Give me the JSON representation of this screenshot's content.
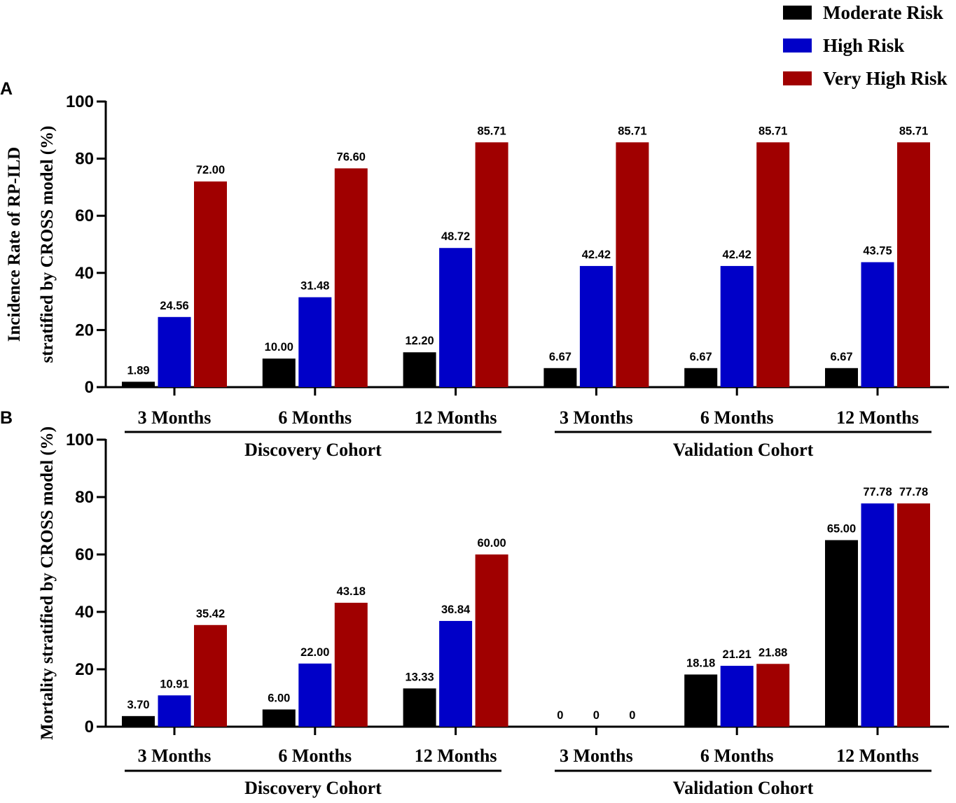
{
  "legend": {
    "items": [
      {
        "label": "Moderate Risk",
        "color": "#000000"
      },
      {
        "label": "High Risk",
        "color": "#0000c8"
      },
      {
        "label": "Very High Risk",
        "color": "#a00000"
      }
    ]
  },
  "chart_data": [
    {
      "type": "bar",
      "panel_letter": "A",
      "ylabel_line1": "Incidence Rate of RP-ILD",
      "ylabel_line2": "stratified by CROSS model (%)",
      "ylim": [
        0,
        100
      ],
      "yticks": [
        0,
        20,
        40,
        60,
        80,
        100
      ],
      "groups": [
        {
          "name": "Discovery Cohort",
          "categories": [
            "3 Months",
            "6 Months",
            "12 Months"
          ]
        },
        {
          "name": "Validation Cohort",
          "categories": [
            "3 Months",
            "6 Months",
            "12 Months"
          ]
        }
      ],
      "series": [
        {
          "name": "Moderate Risk",
          "values": [
            1.89,
            10.0,
            12.2,
            6.67,
            6.67,
            6.67
          ],
          "labels": [
            "1.89",
            "10.00",
            "12.20",
            "6.67",
            "6.67",
            "6.67"
          ]
        },
        {
          "name": "High Risk",
          "values": [
            24.56,
            31.48,
            48.72,
            42.42,
            42.42,
            43.75
          ],
          "labels": [
            "24.56",
            "31.48",
            "48.72",
            "42.42",
            "42.42",
            "43.75"
          ]
        },
        {
          "name": "Very High Risk",
          "values": [
            72.0,
            76.6,
            85.71,
            85.71,
            85.71,
            85.71
          ],
          "labels": [
            "72.00",
            "76.60",
            "85.71",
            "85.71",
            "85.71",
            "85.71"
          ]
        }
      ]
    },
    {
      "type": "bar",
      "panel_letter": "B",
      "ylabel_line1": "Mortality stratified by CROSS model (%)",
      "ylabel_line2": "",
      "ylim": [
        0,
        100
      ],
      "yticks": [
        0,
        20,
        40,
        60,
        80,
        100
      ],
      "groups": [
        {
          "name": "Discovery Cohort",
          "categories": [
            "3 Months",
            "6 Months",
            "12 Months"
          ]
        },
        {
          "name": "Validation Cohort",
          "categories": [
            "3 Months",
            "6 Months",
            "12 Months"
          ]
        }
      ],
      "series": [
        {
          "name": "Moderate Risk",
          "values": [
            3.7,
            6.0,
            13.33,
            0,
            18.18,
            65.0
          ],
          "labels": [
            "3.70",
            "6.00",
            "13.33",
            "0",
            "18.18",
            "65.00"
          ]
        },
        {
          "name": "High Risk",
          "values": [
            10.91,
            22.0,
            36.84,
            0,
            21.21,
            77.78
          ],
          "labels": [
            "10.91",
            "22.00",
            "36.84",
            "0",
            "21.21",
            "77.78"
          ]
        },
        {
          "name": "Very High Risk",
          "values": [
            35.42,
            43.18,
            60.0,
            0,
            21.88,
            77.78
          ],
          "labels": [
            "35.42",
            "43.18",
            "60.00",
            "0",
            "21.88",
            "77.78"
          ]
        }
      ]
    }
  ]
}
